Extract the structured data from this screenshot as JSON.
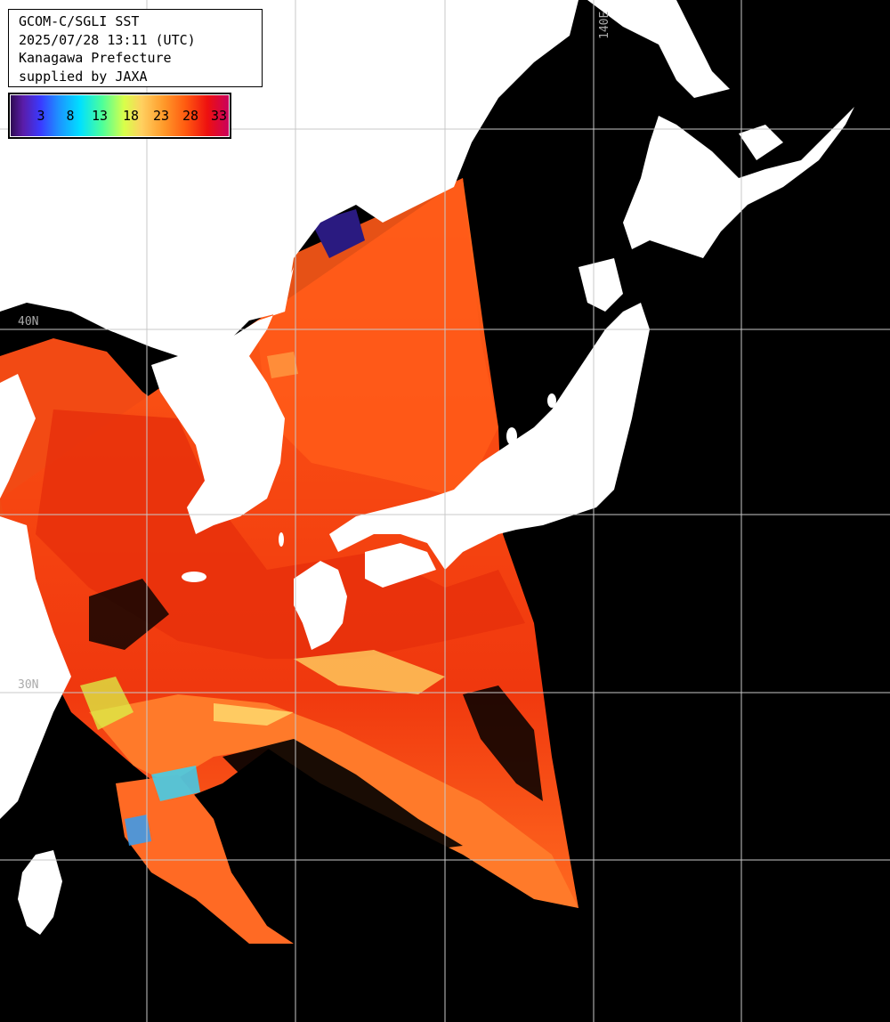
{
  "info": {
    "line1": "GCOM-C/SGLI SST",
    "line2": "2025/07/28 13:11 (UTC)",
    "line3": "Kanagawa Prefecture",
    "line4": "supplied by JAXA"
  },
  "colorbar": {
    "ticks": [
      "3",
      "8",
      "13",
      "18",
      "23",
      "28",
      "33"
    ]
  },
  "grid_labels": {
    "lon_140": "140E",
    "lat_40": "40N",
    "lat_30": "30N"
  },
  "colors": {
    "land": "#ffffff",
    "no_data": "#000000",
    "warm_sst": "#f04a14",
    "hot_sst": "#e02a10",
    "grid": "#c8c8c8"
  }
}
